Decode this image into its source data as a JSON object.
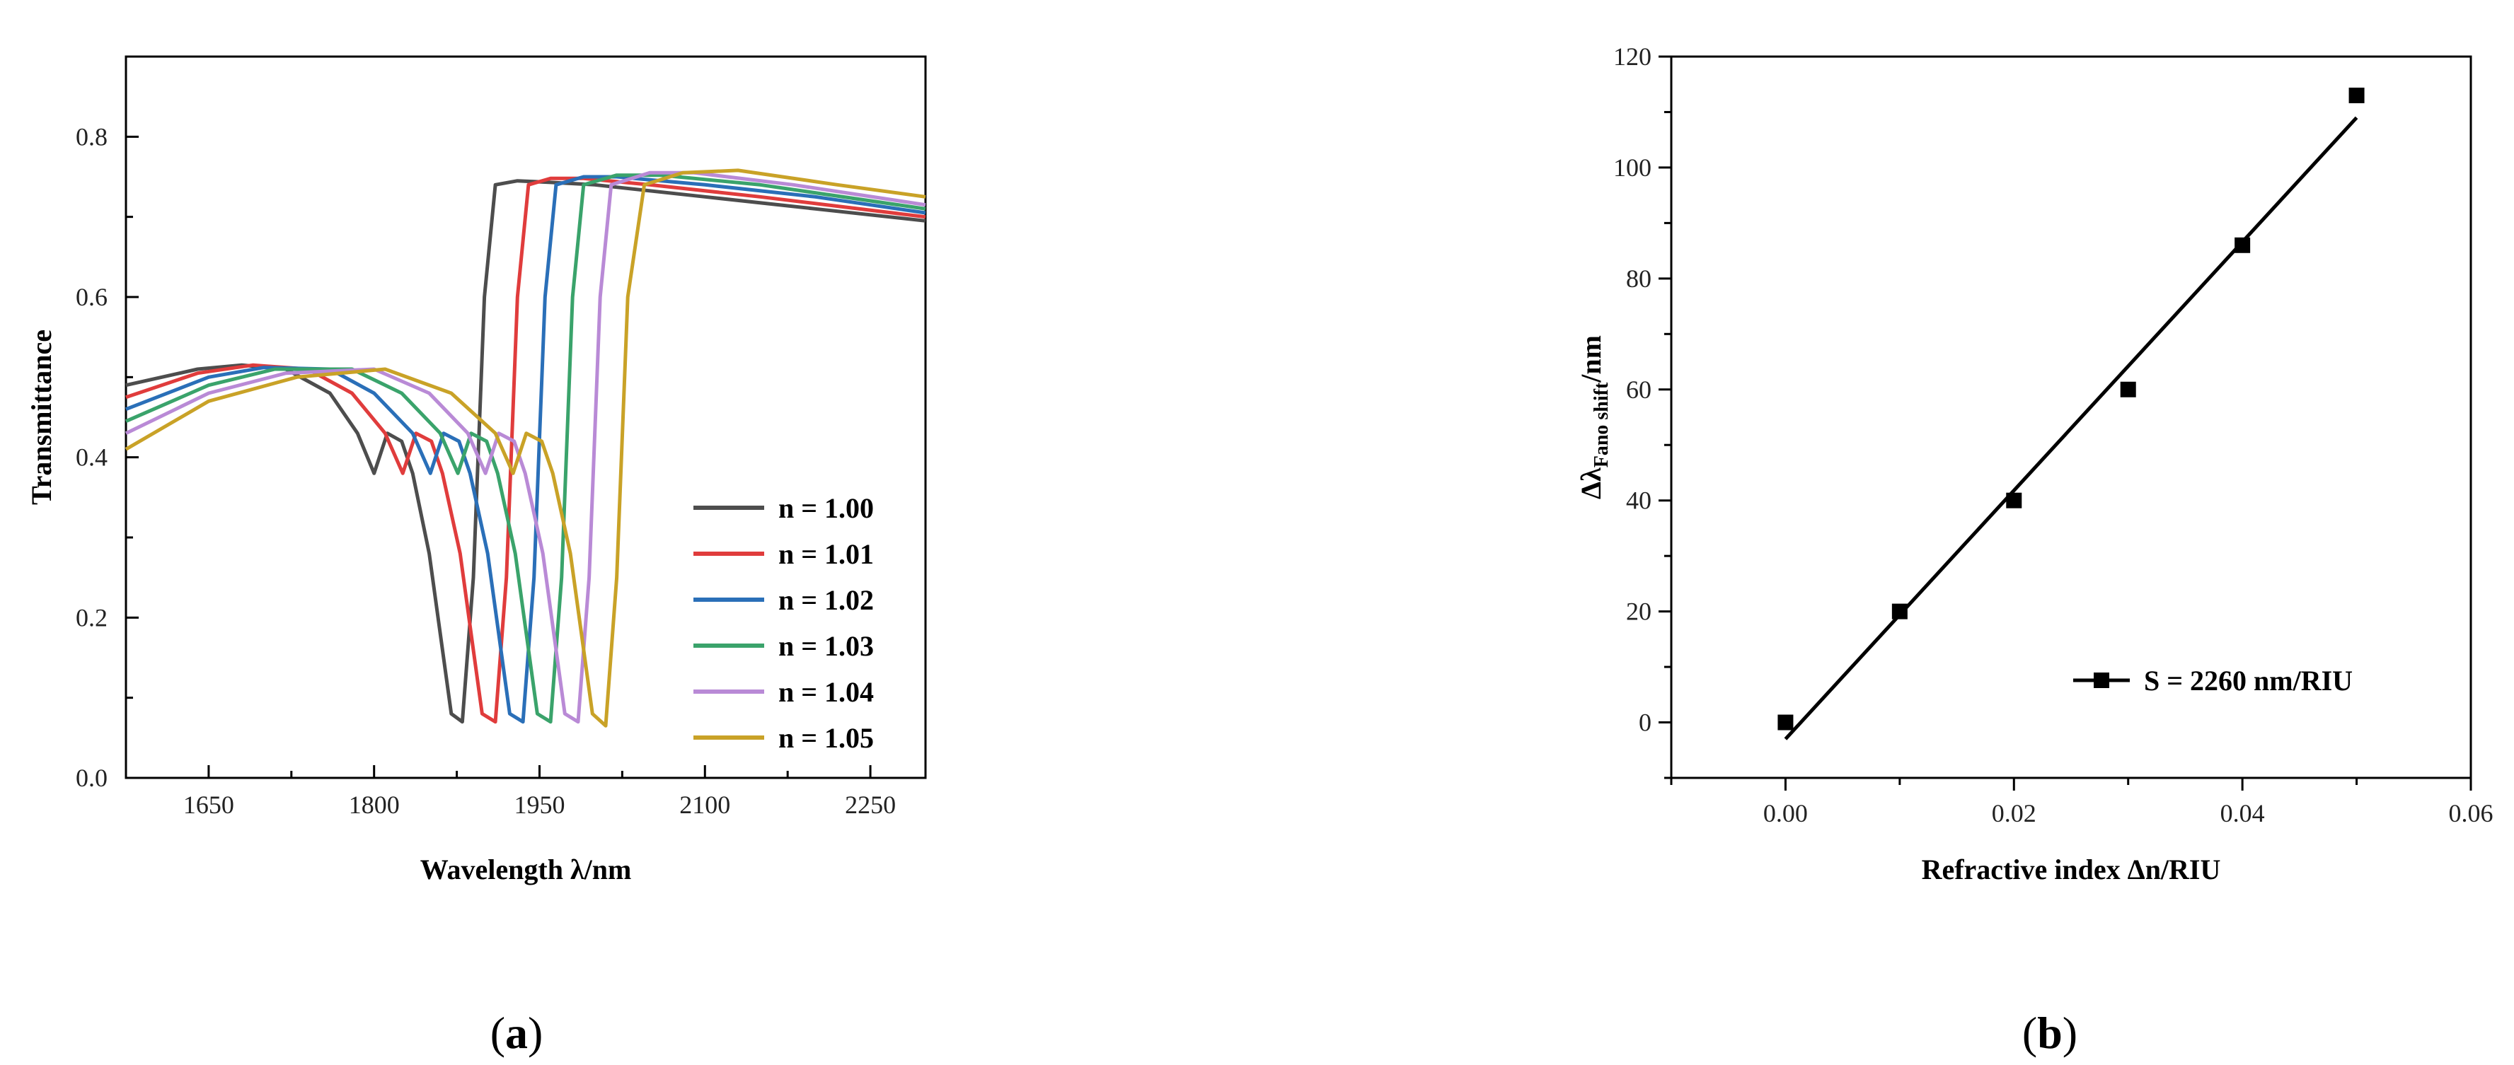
{
  "panels": {
    "a": {
      "label_open": "(",
      "label_letter": "a",
      "label_close": ")"
    },
    "b": {
      "label_open": "(",
      "label_letter": "b",
      "label_close": ")"
    }
  },
  "chart_data": [
    {
      "type": "line",
      "xlabel": "Wavelength λ/nm",
      "ylabel": "Transmittance",
      "xlim": [
        1575,
        2300
      ],
      "ylim": [
        0.0,
        0.9
      ],
      "xticks": [
        1650,
        1800,
        1950,
        2100,
        2250
      ],
      "yticks": [
        0.0,
        0.2,
        0.4,
        0.6,
        0.8
      ],
      "ytick_labels": [
        "0.0",
        "0.2",
        "0.4",
        "0.6",
        "0.8"
      ],
      "legend_position": "bottom-right",
      "series": [
        {
          "name": "n = 1.00",
          "color": "#4d4d4d",
          "x": [
            1575,
            1640,
            1680,
            1720,
            1760,
            1785,
            1800,
            1812,
            1825,
            1835,
            1850,
            1860,
            1870,
            1880,
            1890,
            1900,
            1910,
            1930,
            1960,
            2000,
            2100,
            2200,
            2300
          ],
          "y": [
            0.49,
            0.51,
            0.515,
            0.51,
            0.48,
            0.43,
            0.38,
            0.43,
            0.42,
            0.38,
            0.28,
            0.18,
            0.08,
            0.07,
            0.25,
            0.6,
            0.74,
            0.745,
            0.743,
            0.74,
            0.725,
            0.71,
            0.695
          ]
        },
        {
          "name": "n = 1.01",
          "color": "#e03c3c",
          "x": [
            1575,
            1640,
            1690,
            1740,
            1780,
            1810,
            1826,
            1838,
            1852,
            1862,
            1878,
            1888,
            1898,
            1910,
            1920,
            1930,
            1940,
            1960,
            1990,
            2050,
            2150,
            2300
          ],
          "y": [
            0.475,
            0.505,
            0.515,
            0.51,
            0.48,
            0.43,
            0.38,
            0.43,
            0.42,
            0.38,
            0.28,
            0.18,
            0.08,
            0.07,
            0.25,
            0.6,
            0.74,
            0.748,
            0.748,
            0.74,
            0.725,
            0.7
          ]
        },
        {
          "name": "n = 1.02",
          "color": "#2a6fb8",
          "x": [
            1575,
            1650,
            1700,
            1760,
            1800,
            1835,
            1851,
            1863,
            1877,
            1887,
            1903,
            1913,
            1923,
            1935,
            1945,
            1955,
            1965,
            1990,
            2020,
            2100,
            2200,
            2300
          ],
          "y": [
            0.46,
            0.5,
            0.512,
            0.51,
            0.48,
            0.43,
            0.38,
            0.43,
            0.42,
            0.38,
            0.28,
            0.18,
            0.08,
            0.07,
            0.25,
            0.6,
            0.74,
            0.75,
            0.75,
            0.74,
            0.725,
            0.705
          ]
        },
        {
          "name": "n = 1.03",
          "color": "#3aa36b",
          "x": [
            1575,
            1650,
            1710,
            1780,
            1825,
            1860,
            1876,
            1888,
            1902,
            1912,
            1928,
            1938,
            1948,
            1960,
            1970,
            1980,
            1990,
            2020,
            2060,
            2150,
            2300
          ],
          "y": [
            0.445,
            0.49,
            0.51,
            0.51,
            0.48,
            0.43,
            0.38,
            0.43,
            0.42,
            0.38,
            0.28,
            0.18,
            0.08,
            0.07,
            0.25,
            0.6,
            0.74,
            0.752,
            0.752,
            0.74,
            0.71
          ]
        },
        {
          "name": "n = 1.04",
          "color": "#b98ad6",
          "x": [
            1575,
            1650,
            1720,
            1800,
            1850,
            1885,
            1901,
            1913,
            1927,
            1937,
            1953,
            1963,
            1973,
            1985,
            1995,
            2005,
            2015,
            2050,
            2090,
            2180,
            2300
          ],
          "y": [
            0.43,
            0.48,
            0.505,
            0.51,
            0.48,
            0.43,
            0.38,
            0.43,
            0.42,
            0.38,
            0.28,
            0.18,
            0.08,
            0.07,
            0.25,
            0.6,
            0.74,
            0.755,
            0.755,
            0.74,
            0.715
          ]
        },
        {
          "name": "n = 1.05",
          "color": "#c9a227",
          "x": [
            1575,
            1650,
            1730,
            1810,
            1870,
            1910,
            1926,
            1938,
            1952,
            1962,
            1978,
            1988,
            1998,
            2010,
            2020,
            2030,
            2045,
            2080,
            2130,
            2220,
            2300
          ],
          "y": [
            0.41,
            0.47,
            0.5,
            0.51,
            0.48,
            0.43,
            0.38,
            0.43,
            0.42,
            0.38,
            0.28,
            0.18,
            0.08,
            0.065,
            0.25,
            0.6,
            0.74,
            0.755,
            0.758,
            0.74,
            0.725
          ]
        }
      ]
    },
    {
      "type": "scatter",
      "xlabel": "Refractive index Δn/RIU",
      "ylabel_main": "Δλ",
      "ylabel_sub": "Fano shift",
      "ylabel_unit": "/nm",
      "xlim": [
        -0.01,
        0.06
      ],
      "ylim": [
        -10,
        120
      ],
      "xticks": [
        0.0,
        0.02,
        0.04,
        0.06
      ],
      "xtick_labels": [
        "0.00",
        "0.02",
        "0.04",
        "0.06"
      ],
      "yticks": [
        0,
        20,
        40,
        60,
        80,
        100,
        120
      ],
      "ytick_labels": [
        "0",
        "20",
        "40",
        "60",
        "80",
        "100",
        "120"
      ],
      "legend_position": "bottom-right",
      "series": [
        {
          "name": "S = 2260 nm/RIU",
          "color": "#000000",
          "x": [
            0.0,
            0.01,
            0.02,
            0.03,
            0.04,
            0.05
          ],
          "y": [
            0,
            20,
            40,
            60,
            86,
            113
          ]
        }
      ],
      "fit_line": {
        "x": [
          0.0,
          0.05
        ],
        "y": [
          -3,
          109
        ]
      }
    }
  ]
}
